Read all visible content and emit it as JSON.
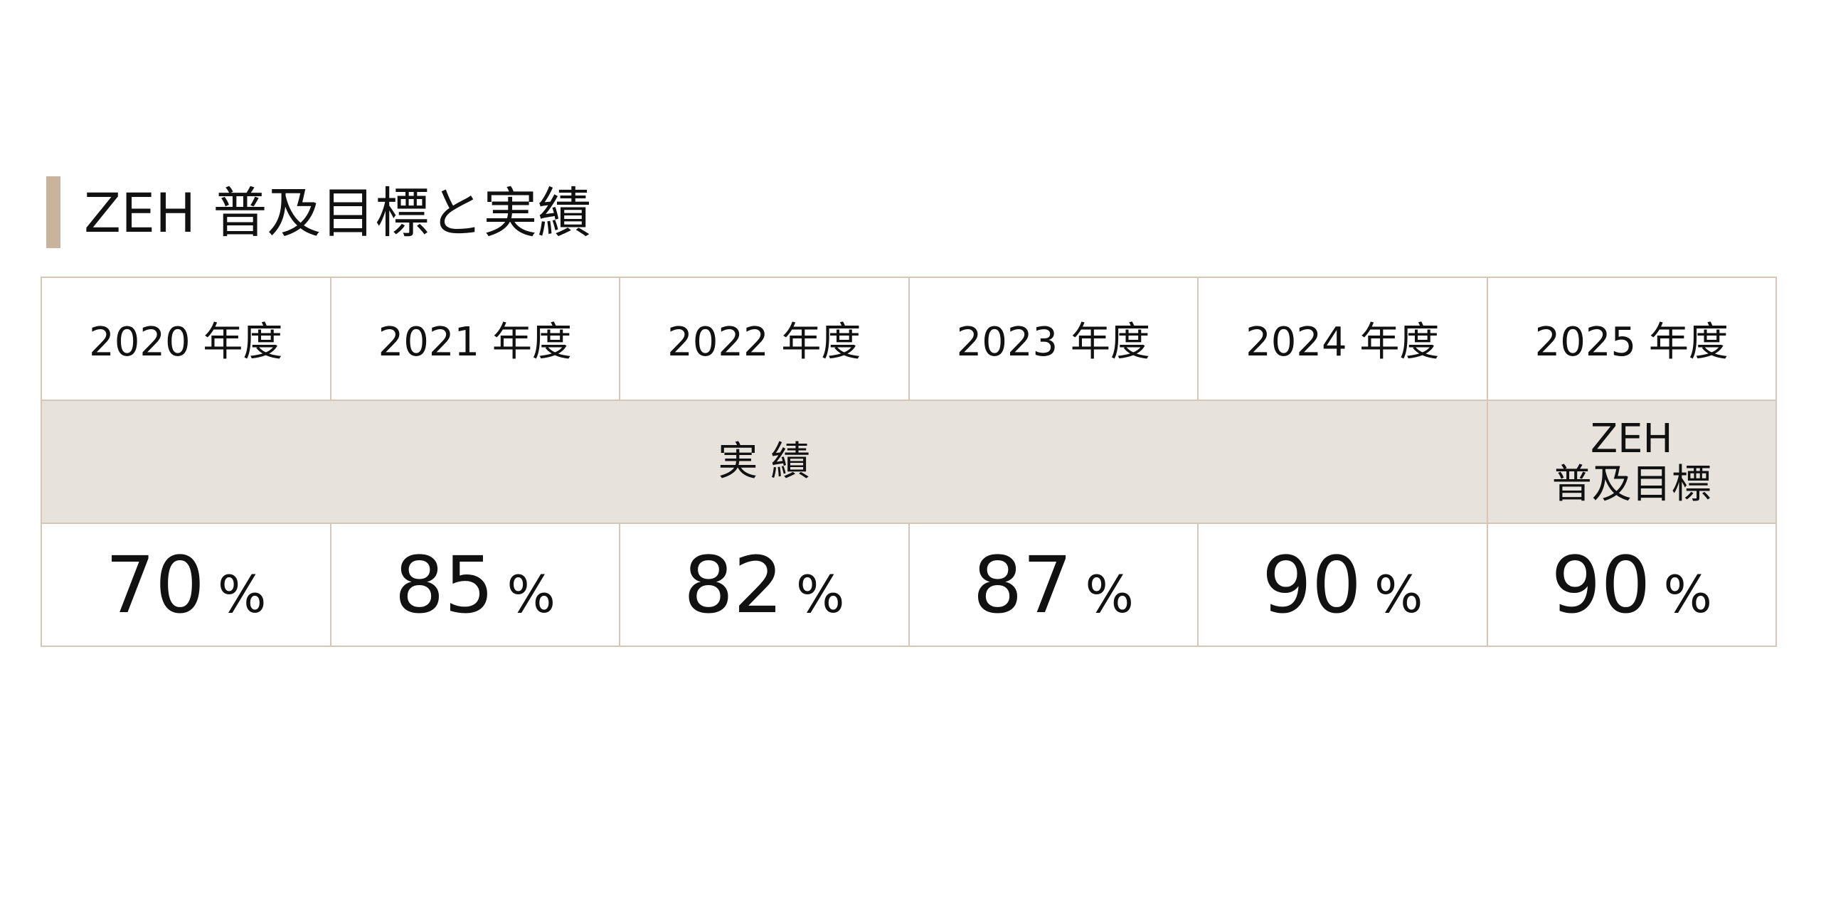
{
  "title": "ZEH 普及目標と実績",
  "table": {
    "header": [
      "2020 年度",
      "2021 年度",
      "2022 年度",
      "2023 年度",
      "2024 年度",
      "2025 年度"
    ],
    "group_row": {
      "actual": "実 績",
      "target": [
        "ZEH",
        "普及目標"
      ]
    },
    "values": [
      70,
      85,
      82,
      87,
      90,
      90
    ],
    "unit": "%"
  }
}
